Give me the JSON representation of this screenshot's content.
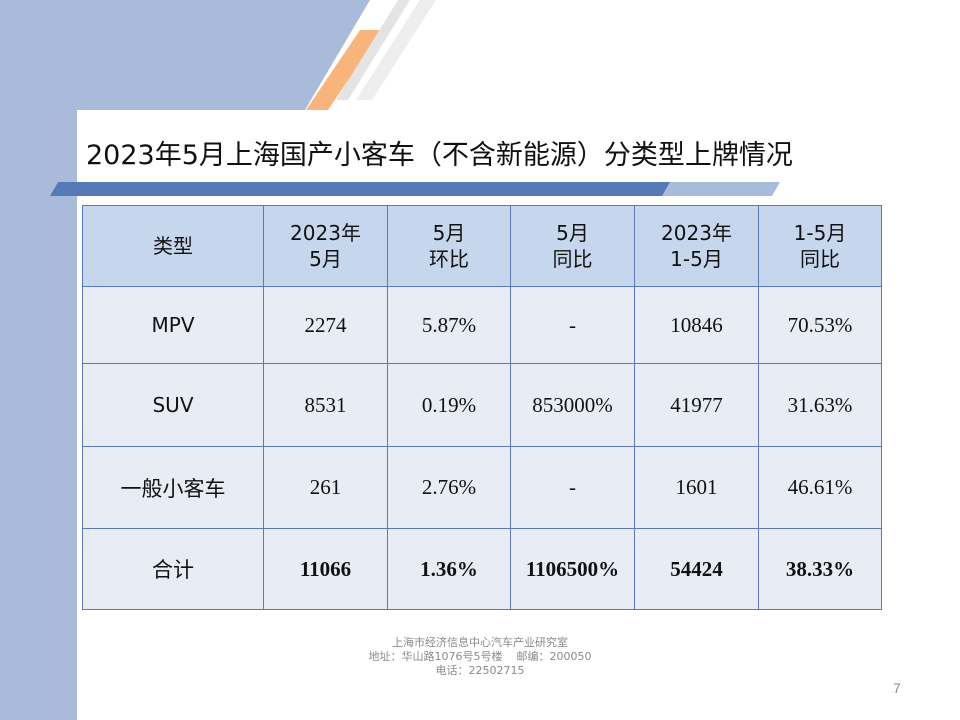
{
  "title": "2023年5月上海国产小客车（不含新能源）分类型上牌情况",
  "colors": {
    "header_fill": "#c6d6ec",
    "cell_fill": "#e8ecf5",
    "border": "#5b79b8",
    "side_band": "#a9bbdb",
    "accent_orange": "#f9b47c"
  },
  "table": {
    "headers": [
      {
        "line1": "类型",
        "line2": ""
      },
      {
        "line1": "2023年",
        "line2": "5月"
      },
      {
        "line1": "5月",
        "line2": "环比"
      },
      {
        "line1": "5月",
        "line2": "同比"
      },
      {
        "line1": "2023年",
        "line2": "1-5月"
      },
      {
        "line1": "1-5月",
        "line2": "同比"
      }
    ],
    "rows": [
      [
        "MPV",
        "2274",
        "5.87%",
        "-",
        "10846",
        "70.53%"
      ],
      [
        "SUV",
        "8531",
        "0.19%",
        "853000%",
        "41977",
        "31.63%"
      ],
      [
        "一般小客车",
        "261",
        "2.76%",
        "-",
        "1601",
        "46.61%"
      ],
      [
        "合计",
        "11066",
        "1.36%",
        "1106500%",
        "54424",
        "38.33%"
      ]
    ]
  },
  "footer": {
    "line1": "上海市经济信息中心汽车产业研究室",
    "line2": "地址：华山路1076号5号楼    邮编：200050",
    "line3": "电话：22502715"
  },
  "page_number": "7"
}
